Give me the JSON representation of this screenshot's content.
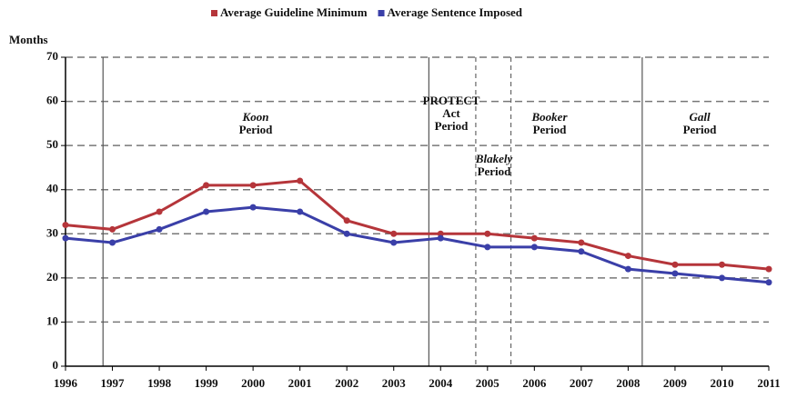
{
  "chart_data": {
    "type": "line",
    "y_axis_label": "Months",
    "x": [
      1996,
      1997,
      1998,
      1999,
      2000,
      2001,
      2002,
      2003,
      2004,
      2005,
      2006,
      2007,
      2008,
      2009,
      2010,
      2011
    ],
    "series": [
      {
        "name": "Average Guideline Minimum",
        "color": "#b5353a",
        "values": [
          32,
          31,
          35,
          41,
          41,
          42,
          33,
          30,
          30,
          30,
          29,
          28,
          25,
          23,
          23,
          22
        ]
      },
      {
        "name": "Average Sentence Imposed",
        "color": "#3a3fa8",
        "values": [
          29,
          28,
          31,
          35,
          36,
          35,
          30,
          28,
          29,
          27,
          27,
          26,
          22,
          21,
          20,
          19
        ]
      }
    ],
    "xlim": [
      1996,
      2011
    ],
    "xticks": [
      1996,
      1997,
      1998,
      1999,
      2000,
      2001,
      2002,
      2003,
      2004,
      2005,
      2006,
      2007,
      2008,
      2009,
      2010,
      2011
    ],
    "ylim": [
      0,
      70
    ],
    "yticks": [
      0,
      10,
      20,
      30,
      40,
      50,
      60,
      70
    ],
    "grid": true,
    "legend": "top",
    "period_lines": [
      {
        "x": 1996.8,
        "style": "solid"
      },
      {
        "x": 2003.75,
        "style": "solid"
      },
      {
        "x": 2004.75,
        "style": "dashed"
      },
      {
        "x": 2005.5,
        "style": "dashed"
      },
      {
        "x": 2008.3,
        "style": "solid"
      }
    ],
    "annotations": [
      {
        "lines": [
          "Koon",
          "Period"
        ]
      },
      {
        "lines": [
          "PROTECT",
          "Act",
          "Period"
        ]
      },
      {
        "lines": [
          "Blakely",
          "Period"
        ]
      },
      {
        "lines": [
          "Booker",
          "Period"
        ]
      },
      {
        "lines": [
          "Gall",
          "Period"
        ]
      }
    ]
  }
}
